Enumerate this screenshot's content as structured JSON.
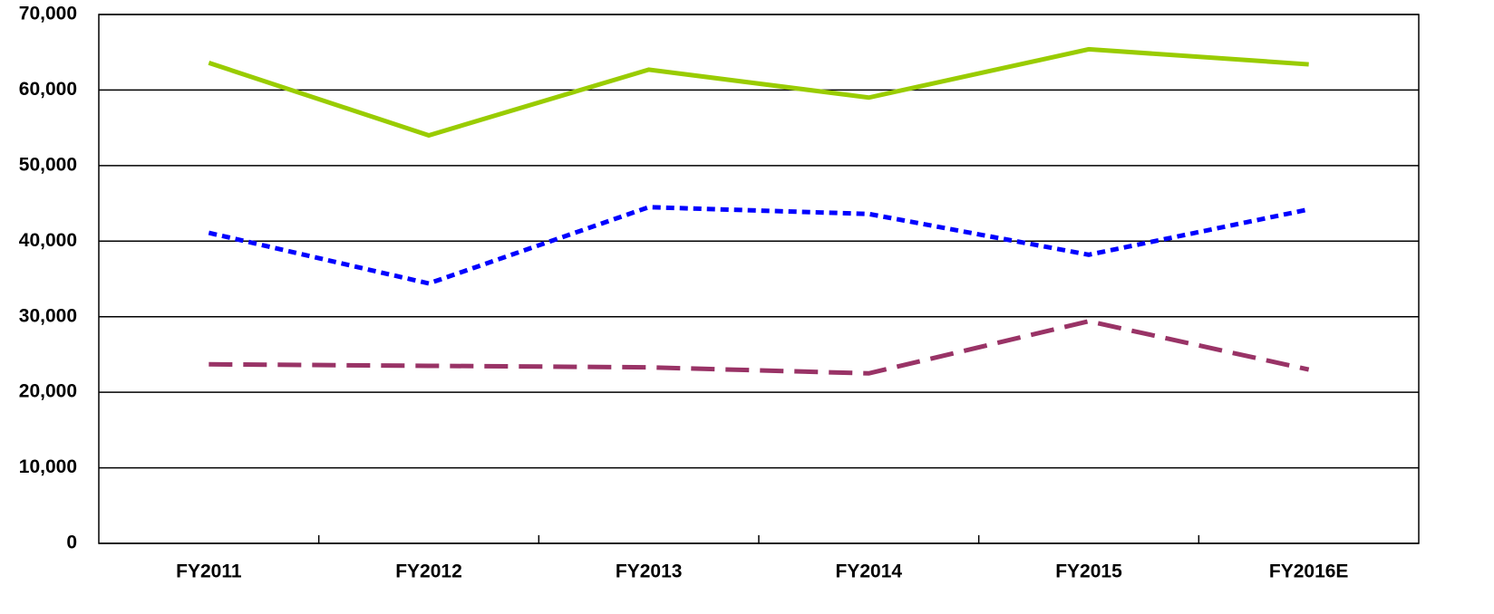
{
  "chart_data": {
    "type": "line",
    "categories": [
      "FY2011",
      "FY2012",
      "FY2013",
      "FY2014",
      "FY2015",
      "FY2016E"
    ],
    "series": [
      {
        "color": "#99cc00",
        "dash": "solid",
        "values": [
          63600,
          54000,
          62700,
          59000,
          65400,
          63400
        ]
      },
      {
        "color": "#0000ff",
        "dash": "dotted",
        "values": [
          41100,
          34400,
          44500,
          43600,
          38200,
          44200
        ]
      },
      {
        "color": "#993366",
        "dash": "dashed",
        "values": [
          23700,
          23500,
          23300,
          22500,
          29400,
          23000
        ]
      }
    ],
    "ylim": [
      0,
      70000
    ],
    "yticks": [
      0,
      {
        "value": 10000,
        "label": "10,000"
      },
      {
        "value": 20000,
        "label": "20,000"
      },
      {
        "value": 30000,
        "label": "30,000"
      },
      {
        "value": 40000,
        "label": "40,000"
      },
      {
        "value": 50000,
        "label": "50,000"
      },
      {
        "value": 60000,
        "label": "60,000"
      },
      {
        "value": 70000,
        "label": "70,000"
      }
    ],
    "grid": true
  }
}
